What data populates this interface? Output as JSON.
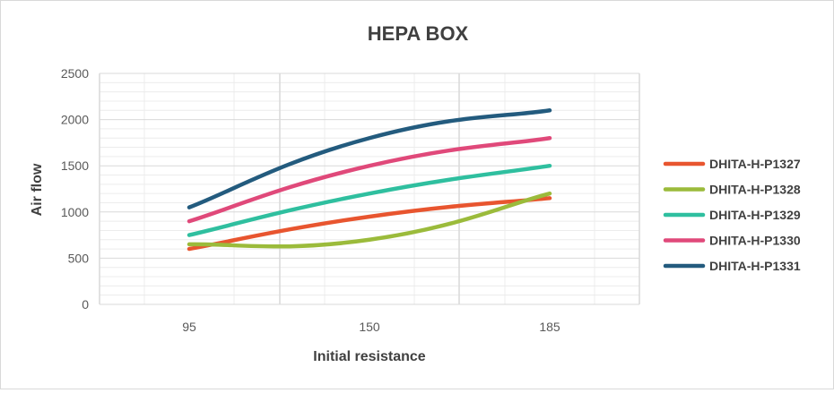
{
  "chart_data": {
    "type": "line",
    "title": "HEPA BOX",
    "xlabel": "Initial resistance",
    "ylabel": "Air flow",
    "categories": [
      "95",
      "150",
      "185"
    ],
    "ylim": [
      0,
      2500
    ],
    "yticks": [
      0,
      500,
      1000,
      1500,
      2000,
      2500
    ],
    "grid": true,
    "legend_position": "right",
    "series": [
      {
        "name": "DHITA-H-P1327",
        "color": "#e8552f",
        "values": [
          600,
          950,
          1150
        ]
      },
      {
        "name": "DHITA-H-P1328",
        "color": "#9bbb3b",
        "values": [
          650,
          700,
          1200
        ]
      },
      {
        "name": "DHITA-H-P1329",
        "color": "#2fbf9f",
        "values": [
          750,
          1200,
          1500
        ]
      },
      {
        "name": "DHITA-H-P1330",
        "color": "#e0497a",
        "values": [
          900,
          1500,
          1800
        ]
      },
      {
        "name": "DHITA-H-P1331",
        "color": "#235b7e",
        "values": [
          1050,
          1800,
          2100
        ]
      }
    ]
  }
}
